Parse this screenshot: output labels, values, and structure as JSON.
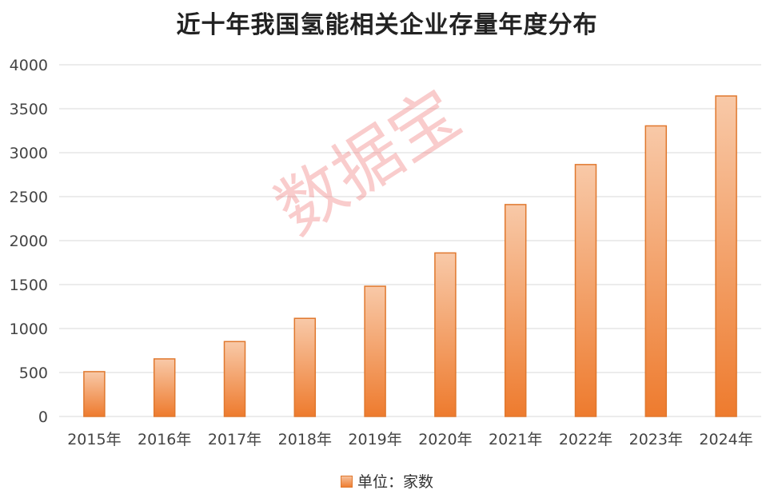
{
  "chart_data": {
    "type": "bar",
    "title": "近十年我国氢能相关企业存量年度分布",
    "categories": [
      "2015年",
      "2016年",
      "2017年",
      "2018年",
      "2019年",
      "2020年",
      "2021年",
      "2022年",
      "2023年",
      "2024年"
    ],
    "series": [
      {
        "name": "单位：家数",
        "values": [
          510,
          655,
          852,
          1116,
          1481,
          1860,
          2410,
          2865,
          3305,
          3645
        ]
      }
    ],
    "ylim": [
      0,
      4000
    ],
    "yticks": [
      0,
      500,
      1000,
      1500,
      2000,
      2500,
      3000,
      3500,
      4000
    ],
    "grid": true,
    "legend": "bottom",
    "xlabel": "",
    "ylabel": "",
    "colors": {
      "bar_top": "#f8c9a8",
      "bar_bottom": "#ee7b2e",
      "bar_border": "#e0782e",
      "grid": "#d9d9d9"
    }
  },
  "watermark": "数据宝"
}
